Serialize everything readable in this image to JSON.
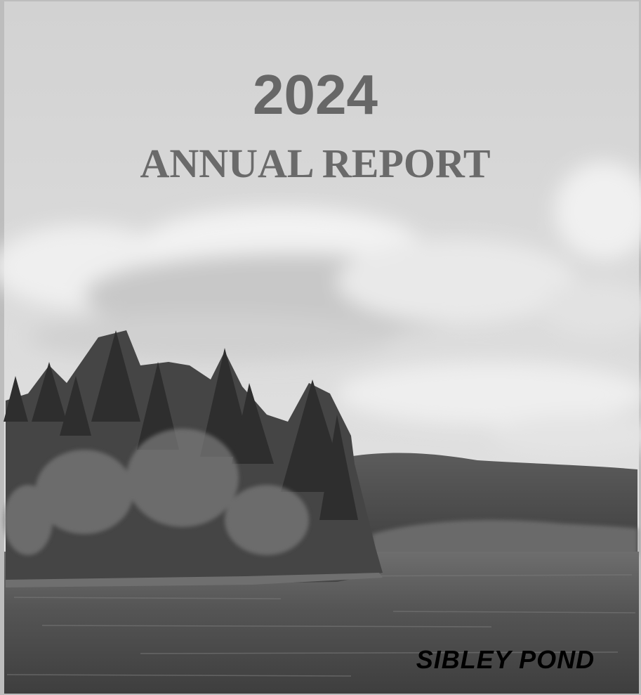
{
  "cover": {
    "year": "2024",
    "title": "ANNUAL REPORT",
    "footer": "SIBLEY POND"
  }
}
